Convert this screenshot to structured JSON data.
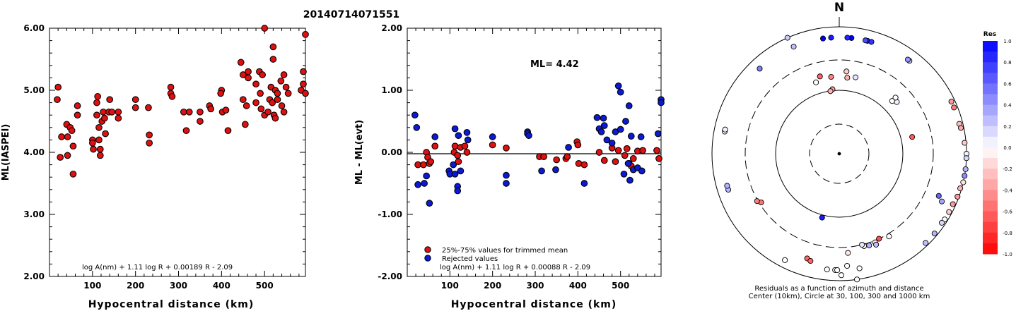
{
  "figure_title": "20140714071551",
  "colors": {
    "kept": "#e01010",
    "rejected": "#0a1ad6",
    "outline": "#000000"
  },
  "chart_data": [
    {
      "type": "scatter",
      "title": "",
      "xlabel": "Hypocentral distance (km)",
      "ylabel": "ML(IASPEI)",
      "xlim": [
        0,
        595
      ],
      "ylim": [
        2.0,
        6.0
      ],
      "x_ticks": [
        "100",
        "200",
        "300",
        "400",
        "500"
      ],
      "y_ticks": [
        "2.00",
        "3.00",
        "4.00",
        "5.00",
        "6.00"
      ],
      "grid": false,
      "formula": "log A(nm) + 1.11 log R + 0.00189 R - 2.09",
      "series": [
        {
          "color": "#e01010",
          "points": [
            [
              20,
              5.05
            ],
            [
              18,
              4.85
            ],
            [
              28,
              4.25
            ],
            [
              25,
              3.92
            ],
            [
              40,
              4.45
            ],
            [
              42,
              4.25
            ],
            [
              42,
              3.95
            ],
            [
              48,
              4.4
            ],
            [
              52,
              4.35
            ],
            [
              55,
              4.1
            ],
            [
              55,
              3.65
            ],
            [
              65,
              4.75
            ],
            [
              65,
              4.6
            ],
            [
              100,
              4.2
            ],
            [
              100,
              4.15
            ],
            [
              102,
              4.05
            ],
            [
              112,
              4.9
            ],
            [
              110,
              4.8
            ],
            [
              110,
              4.6
            ],
            [
              115,
              4.4
            ],
            [
              115,
              4.2
            ],
            [
              118,
              4.05
            ],
            [
              118,
              3.95
            ],
            [
              125,
              4.65
            ],
            [
              122,
              4.5
            ],
            [
              128,
              4.55
            ],
            [
              130,
              4.3
            ],
            [
              140,
              4.85
            ],
            [
              138,
              4.65
            ],
            [
              145,
              4.65
            ],
            [
              160,
              4.65
            ],
            [
              160,
              4.55
            ],
            [
              200,
              4.85
            ],
            [
              200,
              4.72
            ],
            [
              230,
              4.72
            ],
            [
              232,
              4.28
            ],
            [
              232,
              4.15
            ],
            [
              282,
              5.05
            ],
            [
              282,
              4.95
            ],
            [
              285,
              4.9
            ],
            [
              312,
              4.65
            ],
            [
              318,
              4.35
            ],
            [
              325,
              4.65
            ],
            [
              350,
              4.65
            ],
            [
              350,
              4.5
            ],
            [
              372,
              4.75
            ],
            [
              375,
              4.7
            ],
            [
              400,
              5.0
            ],
            [
              398,
              4.95
            ],
            [
              402,
              4.65
            ],
            [
              410,
              4.68
            ],
            [
              415,
              4.35
            ],
            [
              445,
              5.45
            ],
            [
              450,
              5.25
            ],
            [
              450,
              4.85
            ],
            [
              455,
              4.45
            ],
            [
              462,
              5.3
            ],
            [
              462,
              5.2
            ],
            [
              458,
              4.75
            ],
            [
              480,
              5.1
            ],
            [
              480,
              4.8
            ],
            [
              488,
              5.3
            ],
            [
              490,
              4.95
            ],
            [
              492,
              4.7
            ],
            [
              495,
              5.25
            ],
            [
              500,
              6.0
            ],
            [
              500,
              4.6
            ],
            [
              508,
              4.65
            ],
            [
              512,
              4.85
            ],
            [
              515,
              5.05
            ],
            [
              518,
              4.8
            ],
            [
              520,
              5.7
            ],
            [
              520,
              5.5
            ],
            [
              522,
              4.6
            ],
            [
              525,
              4.55
            ],
            [
              525,
              5.0
            ],
            [
              530,
              4.95
            ],
            [
              530,
              4.85
            ],
            [
              538,
              5.15
            ],
            [
              540,
              4.75
            ],
            [
              545,
              5.25
            ],
            [
              545,
              4.65
            ],
            [
              550,
              5.05
            ],
            [
              555,
              4.95
            ],
            [
              585,
              5.0
            ],
            [
              590,
              5.1
            ],
            [
              590,
              5.3
            ],
            [
              595,
              5.9
            ],
            [
              595,
              4.95
            ]
          ]
        }
      ]
    },
    {
      "type": "scatter",
      "title": "",
      "xlabel": "Hypocentral distance (km)",
      "ylabel": "ML - ML(evt)",
      "xlim": [
        0,
        595
      ],
      "ylim": [
        -2.0,
        2.0
      ],
      "x_ticks": [
        "100",
        "200",
        "300",
        "400",
        "500"
      ],
      "y_ticks": [
        "-2.00",
        "-1.00",
        "0.00",
        "1.00",
        "2.00"
      ],
      "grid": false,
      "zero_line": true,
      "annotation": "ML=  4.42",
      "formula": "log A(nm) + 1.11 log R + 0.00088 R - 2.09",
      "legend": {
        "placement": "bottom-left",
        "entries": [
          "25%-75% values for trimmed mean",
          "Rejected values"
        ]
      },
      "series": [
        {
          "name": "25%-75% values for trimmed mean",
          "color": "#e01010",
          "points": [
            [
              25,
              -0.2
            ],
            [
              38,
              -0.2
            ],
            [
              45,
              0.0
            ],
            [
              48,
              -0.08
            ],
            [
              52,
              -0.18
            ],
            [
              55,
              -0.15
            ],
            [
              65,
              0.1
            ],
            [
              110,
              0.0
            ],
            [
              112,
              0.1
            ],
            [
              118,
              -0.05
            ],
            [
              120,
              -0.15
            ],
            [
              125,
              0.08
            ],
            [
              135,
              0.1
            ],
            [
              140,
              0.0
            ],
            [
              200,
              0.12
            ],
            [
              232,
              0.07
            ],
            [
              310,
              -0.07
            ],
            [
              320,
              -0.07
            ],
            [
              350,
              -0.12
            ],
            [
              372,
              -0.1
            ],
            [
              375,
              -0.07
            ],
            [
              398,
              0.17
            ],
            [
              400,
              0.12
            ],
            [
              402,
              -0.18
            ],
            [
              415,
              -0.2
            ],
            [
              450,
              0.0
            ],
            [
              462,
              -0.13
            ],
            [
              480,
              0.07
            ],
            [
              488,
              -0.15
            ],
            [
              495,
              0.03
            ],
            [
              510,
              -0.05
            ],
            [
              515,
              0.06
            ],
            [
              520,
              -0.18
            ],
            [
              525,
              -0.22
            ],
            [
              530,
              -0.1
            ],
            [
              540,
              0.02
            ],
            [
              552,
              0.03
            ],
            [
              585,
              0.03
            ],
            [
              590,
              -0.1
            ]
          ]
        },
        {
          "name": "Rejected values",
          "color": "#0a1ad6",
          "points": [
            [
              18,
              0.6
            ],
            [
              22,
              0.4
            ],
            [
              25,
              -0.52
            ],
            [
              40,
              -0.5
            ],
            [
              45,
              -0.38
            ],
            [
              52,
              -0.82
            ],
            [
              65,
              0.25
            ],
            [
              98,
              -0.3
            ],
            [
              100,
              -0.35
            ],
            [
              108,
              -0.2
            ],
            [
              112,
              0.38
            ],
            [
              112,
              -0.35
            ],
            [
              118,
              -0.55
            ],
            [
              118,
              -0.62
            ],
            [
              120,
              0.27
            ],
            [
              125,
              -0.3
            ],
            [
              140,
              0.32
            ],
            [
              142,
              0.2
            ],
            [
              200,
              0.25
            ],
            [
              232,
              -0.37
            ],
            [
              232,
              -0.5
            ],
            [
              282,
              0.33
            ],
            [
              282,
              0.3
            ],
            [
              285,
              0.27
            ],
            [
              315,
              -0.3
            ],
            [
              348,
              -0.28
            ],
            [
              378,
              0.08
            ],
            [
              415,
              -0.5
            ],
            [
              445,
              0.56
            ],
            [
              450,
              0.38
            ],
            [
              455,
              0.33
            ],
            [
              460,
              0.55
            ],
            [
              462,
              0.43
            ],
            [
              468,
              0.2
            ],
            [
              480,
              0.15
            ],
            [
              488,
              0.33
            ],
            [
              495,
              1.07
            ],
            [
              500,
              0.97
            ],
            [
              500,
              0.37
            ],
            [
              508,
              -0.35
            ],
            [
              512,
              0.5
            ],
            [
              518,
              -0.18
            ],
            [
              520,
              0.75
            ],
            [
              522,
              -0.45
            ],
            [
              525,
              0.26
            ],
            [
              530,
              -0.28
            ],
            [
              540,
              -0.25
            ],
            [
              548,
              0.25
            ],
            [
              550,
              -0.3
            ],
            [
              588,
              0.3
            ],
            [
              595,
              0.85
            ],
            [
              595,
              0.8
            ]
          ]
        }
      ]
    },
    {
      "type": "scatter",
      "subtype": "polar",
      "title": "",
      "north_label": "N",
      "caption_line1": "Residuals as a function of azimuth and distance",
      "caption_line2": "Center (10km), Circle at 30, 100, 300 and 1000 km",
      "rings_km": [
        30,
        100,
        300,
        1000
      ],
      "colorbar": {
        "title": "Res",
        "ticks": [
          "1.0",
          "0.8",
          "0.6",
          "0.4",
          "0.2",
          "0.0",
          "-0.2",
          "-0.4",
          "-0.6",
          "-0.8",
          "-1.0"
        ]
      },
      "points_az_dist_res": [
        [
          -8,
          1500,
          1.0
        ],
        [
          -4,
          1500,
          0.9
        ],
        [
          6,
          1500,
          1.0
        ],
        [
          4,
          1500,
          0.85
        ],
        [
          14,
          1500,
          0.9
        ],
        [
          16,
          1500,
          0.8
        ],
        [
          13,
          1080,
          0.7
        ],
        [
          -23,
          1020,
          0.25
        ],
        [
          -24,
          1000,
          0.2
        ],
        [
          37,
          1050,
          0.25
        ],
        [
          36,
          1100,
          0.4
        ],
        [
          -43,
          1150,
          0.5
        ],
        [
          5,
          200,
          -0.2
        ],
        [
          -6,
          165,
          -0.5
        ],
        [
          -14,
          180,
          -0.6
        ],
        [
          6,
          160,
          -0.3
        ],
        [
          12,
          170,
          0.1
        ],
        [
          -18,
          152,
          0.0
        ],
        [
          -6,
          105,
          -0.4
        ],
        [
          -8,
          99,
          -0.3
        ],
        [
          45,
          150,
          0.0
        ],
        [
          48,
          165,
          0.05
        ],
        [
          45,
          178,
          0.0
        ],
        [
          77,
          150,
          -0.65
        ],
        [
          -165,
          110,
          0.9
        ],
        [
          65,
          880,
          -0.4
        ],
        [
          68,
          880,
          -0.5
        ],
        [
          76,
          880,
          -0.25
        ],
        [
          78,
          900,
          -0.35
        ],
        [
          85,
          950,
          -0.2
        ],
        [
          90,
          1000,
          0.05
        ],
        [
          92,
          1000,
          0.15
        ],
        [
          97,
          1000,
          0.3
        ],
        [
          100,
          1000,
          0.45
        ],
        [
          103,
          1000,
          -0.1
        ],
        [
          106,
          950,
          -0.3
        ],
        [
          110,
          950,
          -0.4
        ],
        [
          114,
          900,
          -0.4
        ],
        [
          118,
          900,
          -0.2
        ],
        [
          122,
          900,
          0.0
        ],
        [
          124,
          880,
          0.15
        ],
        [
          130,
          900,
          0.3
        ],
        [
          113,
          500,
          0.6
        ],
        [
          115,
          600,
          0.35
        ],
        [
          136,
          900,
          0.25
        ],
        [
          149,
          330,
          0.0
        ],
        [
          155,
          300,
          -0.7
        ],
        [
          158,
          320,
          -0.1
        ],
        [
          162,
          330,
          0.3
        ],
        [
          165,
          320,
          0.0
        ],
        [
          166,
          300,
          0.1
        ],
        [
          158,
          350,
          0.25
        ],
        [
          175,
          370,
          -0.1
        ],
        [
          176,
          590,
          0.0
        ],
        [
          179,
          820,
          0.0
        ],
        [
          172,
          1000,
          0.0
        ],
        [
          170,
          1100,
          0.0
        ],
        [
          182,
          1100,
          0.0
        ],
        [
          181,
          1300,
          0.0
        ],
        [
          186,
          1300,
          0.0
        ],
        [
          197,
          530,
          -0.6
        ],
        [
          195,
          560,
          -0.6
        ],
        [
          207,
          760,
          0.0
        ],
        [
          238,
          280,
          -0.55
        ],
        [
          240,
          310,
          -0.5
        ],
        [
          252,
          1200,
          0.3
        ],
        [
          254,
          1220,
          0.3
        ],
        [
          281,
          1380,
          0.0
        ],
        [
          282,
          1380,
          0.05
        ]
      ]
    }
  ]
}
